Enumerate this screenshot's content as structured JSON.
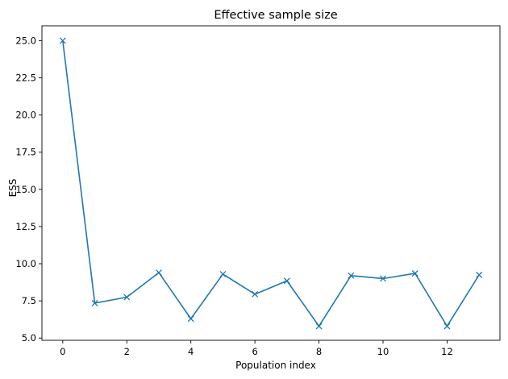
{
  "chart_data": {
    "type": "line",
    "title": "Effective sample size",
    "xlabel": "Population index",
    "ylabel": "ESS",
    "xlim": [
      -0.65,
      13.65
    ],
    "ylim": [
      4.85,
      26.0
    ],
    "xticks": [
      0,
      2,
      4,
      6,
      8,
      10,
      12
    ],
    "yticks": [
      5.0,
      7.5,
      10.0,
      12.5,
      15.0,
      17.5,
      20.0,
      22.5,
      25.0
    ],
    "xtick_labels": [
      "0",
      "2",
      "4",
      "6",
      "8",
      "10",
      "12"
    ],
    "ytick_labels": [
      "5.0",
      "7.5",
      "10.0",
      "12.5",
      "15.0",
      "17.5",
      "20.0",
      "22.5",
      "25.0"
    ],
    "grid": false,
    "series": [
      {
        "marker": "x",
        "color": "#1f77b4",
        "x": [
          0,
          1,
          2,
          3,
          4,
          5,
          6,
          7,
          8,
          9,
          10,
          11,
          12,
          13
        ],
        "y": [
          25.0,
          7.35,
          7.75,
          9.4,
          6.3,
          9.3,
          7.95,
          8.85,
          5.8,
          9.2,
          9.0,
          9.35,
          5.8,
          9.25
        ]
      }
    ]
  }
}
